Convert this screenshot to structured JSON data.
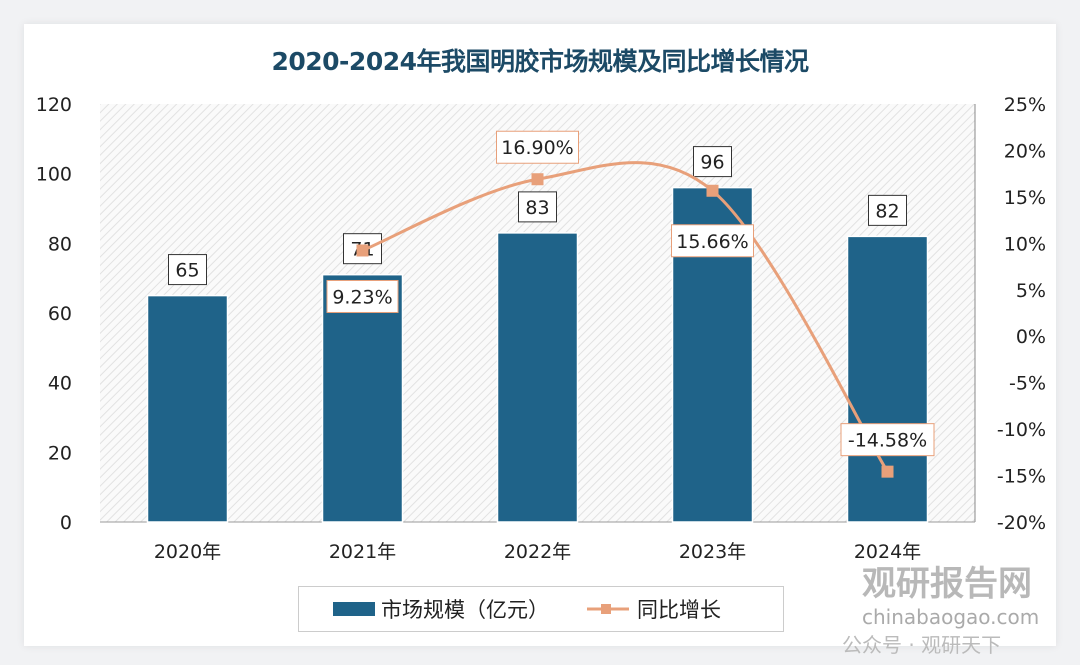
{
  "chart_data": {
    "type": "bar+line",
    "title": "2020-2024年我国明胶市场规模及同比增长情况",
    "categories": [
      "2020年",
      "2021年",
      "2022年",
      "2023年",
      "2024年"
    ],
    "series": [
      {
        "name": "市场规模（亿元）",
        "type": "bar",
        "axis": "left",
        "values": [
          65,
          71,
          83,
          96,
          82
        ],
        "labels": [
          "65",
          "71",
          "83",
          "96",
          "82"
        ],
        "color": "#1f6389"
      },
      {
        "name": "同比增长",
        "type": "line",
        "axis": "right",
        "values": [
          null,
          9.23,
          16.9,
          15.66,
          -14.58
        ],
        "labels": [
          "",
          "9.23%",
          "16.90%",
          "15.66%",
          "-14.58%"
        ],
        "color": "#e8a07a"
      }
    ],
    "left_axis": {
      "ylim": [
        0,
        120
      ],
      "ticks": [
        "0",
        "20",
        "40",
        "60",
        "80",
        "100",
        "120"
      ]
    },
    "right_axis": {
      "ylim": [
        -20,
        25
      ],
      "ticks": [
        "-20%",
        "-15%",
        "-10%",
        "-5%",
        "0%",
        "5%",
        "10%",
        "15%",
        "20%",
        "25%"
      ]
    },
    "grid": false,
    "legend": "bottom"
  },
  "watermark": {
    "brand": "观研报告网",
    "site": "chinabaogao.com",
    "account": "公众号 · 观研天下"
  }
}
